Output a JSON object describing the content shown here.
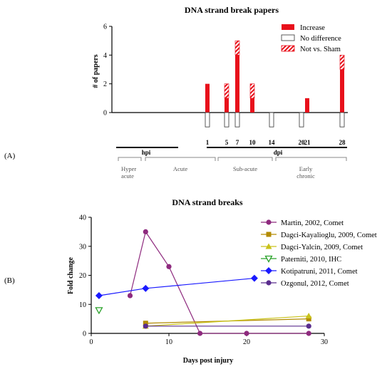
{
  "panel_a": {
    "label": "(A)",
    "phase_units": [
      "hpi",
      "dpi"
    ],
    "phases": [
      "Hyper acute",
      "Acute",
      "Sub-acute",
      "Early chronic"
    ]
  },
  "panel_b": {
    "label": "(B)"
  },
  "colors": {
    "increase": "#e8101b",
    "Martin, 2002, Comet": "#8e2a7e",
    "Dagci-Kayalioglu, 2009, Comet": "#b38b00",
    "Dagci-Yalcin, 2009, Comet": "#c9c21a",
    "Paterniti, 2010, IHC": "#2aa22a",
    "Kotipatruni, 2011, Comet": "#1a1aff",
    "Ozgonul, 2012, Comet": "#5a2d8e"
  },
  "chart_data": [
    {
      "type": "bar",
      "title": "DNA strand break papers",
      "ylabel": "# of papers",
      "xlabel": "",
      "ylim": [
        0,
        6
      ],
      "yticks": [
        0,
        2,
        4,
        6
      ],
      "x_ticks": [
        1,
        5,
        7,
        10,
        14,
        20,
        21,
        28
      ],
      "x": [
        1,
        5,
        7,
        10,
        14,
        20,
        21,
        28
      ],
      "legend_position": "top-right",
      "series": [
        {
          "name": "Increase",
          "values": [
            2,
            1,
            4,
            1,
            0,
            0,
            1,
            3
          ]
        },
        {
          "name": "No difference",
          "values": [
            1,
            1,
            1,
            0,
            1,
            1,
            0,
            1
          ]
        },
        {
          "name": "Not vs. Sham",
          "values": [
            0,
            1,
            1,
            1,
            0,
            0,
            0,
            1
          ]
        }
      ]
    },
    {
      "type": "line",
      "title": "DNA strand breaks",
      "xlabel": "Days post injury",
      "ylabel": "Fold change",
      "xlim": [
        0,
        30
      ],
      "ylim": [
        0,
        40
      ],
      "xticks": [
        0,
        10,
        20,
        30
      ],
      "yticks": [
        0,
        10,
        20,
        30,
        40
      ],
      "legend_position": "right",
      "series": [
        {
          "name": "Martin, 2002, Comet",
          "marker": "circle",
          "x": [
            5,
            7,
            10,
            14,
            20,
            28
          ],
          "y": [
            13,
            35,
            23,
            0,
            0,
            0
          ]
        },
        {
          "name": "Dagci-Kayalioglu, 2009, Comet",
          "marker": "square",
          "x": [
            7,
            28
          ],
          "y": [
            3.5,
            5
          ]
        },
        {
          "name": "Dagci-Yalcin, 2009, Comet",
          "marker": "triangle",
          "x": [
            7,
            28
          ],
          "y": [
            2.5,
            6
          ]
        },
        {
          "name": "Paterniti, 2010, IHC",
          "marker": "triangle-down-open",
          "x": [
            1
          ],
          "y": [
            8
          ]
        },
        {
          "name": "Kotipatruni, 2011, Comet",
          "marker": "diamond",
          "x": [
            1,
            7,
            21
          ],
          "y": [
            13,
            15.5,
            19
          ]
        },
        {
          "name": "Ozgonul, 2012, Comet",
          "marker": "circle",
          "x": [
            7,
            28
          ],
          "y": [
            2.5,
            2.5
          ]
        }
      ]
    }
  ]
}
